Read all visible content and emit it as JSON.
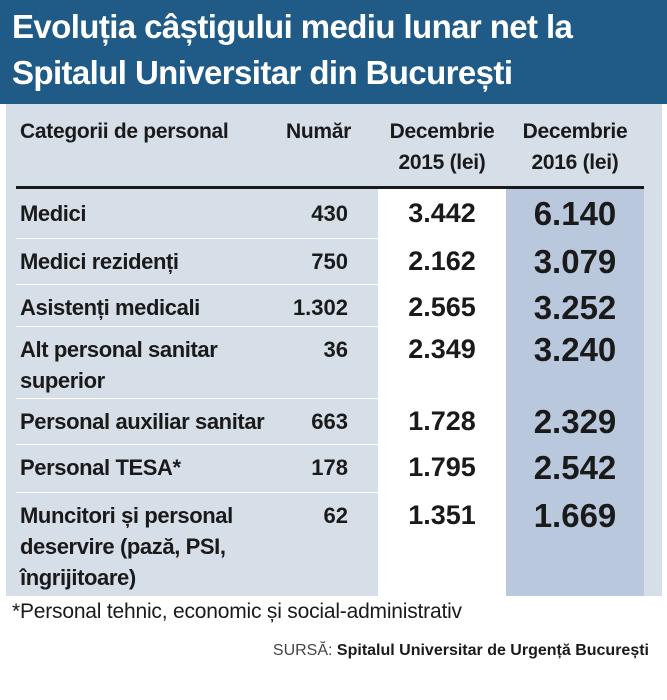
{
  "title": {
    "line1": "Evoluția câștigului mediu lunar net la",
    "line2": "Spitalul Universitar din București"
  },
  "table": {
    "headers": {
      "category": "Categorii de personal",
      "count": "Număr",
      "dec2015": [
        "Decembrie",
        "2015 (lei)"
      ],
      "dec2016": [
        "Decembrie",
        "2016 (lei)"
      ]
    },
    "rows": [
      {
        "category": [
          "Medici"
        ],
        "count": "430",
        "dec2015": "3.442",
        "dec2016": "6.140"
      },
      {
        "category": [
          "Medici rezidenți"
        ],
        "count": "750",
        "dec2015": "2.162",
        "dec2016": "3.079"
      },
      {
        "category": [
          "Asistenți medicali"
        ],
        "count": "1.302",
        "dec2015": "2.565",
        "dec2016": "3.252"
      },
      {
        "category": [
          "Alt personal sanitar",
          "superior"
        ],
        "count": "36",
        "dec2015": "2.349",
        "dec2016": "3.240"
      },
      {
        "category": [
          "Personal auxiliar sanitar"
        ],
        "count": "663",
        "dec2015": "1.728",
        "dec2016": "2.329"
      },
      {
        "category": [
          "Personal TESA*"
        ],
        "count": "178",
        "dec2015": "1.795",
        "dec2016": "2.542"
      },
      {
        "category": [
          "Muncitori și personal",
          "deservire (pază, PSI,",
          "îngrijitoare)"
        ],
        "count": "62",
        "dec2015": "1.351",
        "dec2016": "1.669"
      }
    ]
  },
  "footnote": "*Personal tehnic, economic și social-administrativ",
  "source": {
    "label": "SURSĂ:",
    "value": "Spitalul Universitar de Urgență București"
  },
  "colors": {
    "title_band": "#1f5b86",
    "panel": "#d6dee8",
    "col_2015": "#ffffff",
    "col_2016": "#b9c8dc"
  },
  "chart_data": {
    "type": "table",
    "title": "Evoluția câștigului mediu lunar net la Spitalul Universitar din București",
    "columns": [
      "Categorii de personal",
      "Număr",
      "Decembrie 2015 (lei)",
      "Decembrie 2016 (lei)"
    ],
    "rows": [
      [
        "Medici",
        430,
        3442,
        6140
      ],
      [
        "Medici rezidenți",
        750,
        2162,
        3079
      ],
      [
        "Asistenți medicali",
        1302,
        2565,
        3252
      ],
      [
        "Alt personal sanitar superior",
        36,
        2349,
        3240
      ],
      [
        "Personal auxiliar sanitar",
        663,
        1728,
        2329
      ],
      [
        "Personal TESA*",
        178,
        1795,
        2542
      ],
      [
        "Muncitori și personal deservire (pază, PSI, îngrijitoare)",
        62,
        1351,
        1669
      ]
    ]
  }
}
